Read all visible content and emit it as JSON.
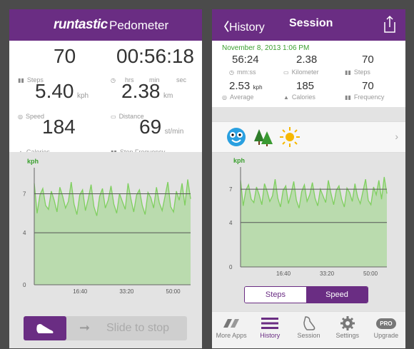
{
  "left": {
    "brand": "runtastic",
    "app_name": "Pedometer",
    "stats": {
      "steps": {
        "value": "70",
        "label": "Steps"
      },
      "duration": {
        "value": "00:56:18",
        "labels": [
          "hrs",
          "min",
          "sec"
        ]
      },
      "speed": {
        "value": "5.40",
        "unit": "kph",
        "label": "Speed"
      },
      "distance": {
        "value": "2.38",
        "unit": "km",
        "label": "Distance"
      },
      "calories": {
        "value": "184",
        "label": "Calories"
      },
      "frequency": {
        "value": "69",
        "unit": "st/min",
        "label": "Step Frequency"
      }
    },
    "chart": {
      "ylabel": "kph",
      "yticks": [
        "7",
        "4",
        "0"
      ],
      "xticks": [
        "16:40",
        "33:20",
        "50:00"
      ]
    },
    "slider_text": "Slide to stop"
  },
  "right": {
    "back_label": "History",
    "title": "Session",
    "date": "November 8, 2013  1:06 PM",
    "stats": {
      "duration": {
        "value": "56:24",
        "label": "mm:ss"
      },
      "distance": {
        "value": "2.38",
        "label": "Kilometer"
      },
      "steps": {
        "value": "70",
        "label": "Steps"
      },
      "speed": {
        "value": "2.53",
        "unit": "kph",
        "label": "Average"
      },
      "calories": {
        "value": "185",
        "label": "Calories"
      },
      "frequency": {
        "value": "70",
        "label": "Frequency"
      }
    },
    "chart": {
      "ylabel": "kph",
      "yticks": [
        "7",
        "4",
        "0"
      ],
      "xticks": [
        "16:40",
        "33:20",
        "50:00"
      ]
    },
    "toggle": {
      "steps": "Steps",
      "speed": "Speed"
    },
    "tabs": [
      "More Apps",
      "History",
      "Session",
      "Settings",
      "Upgrade"
    ],
    "pro_badge": "PRO"
  },
  "colors": {
    "purple": "#6a2d83",
    "green_fill": "#b3d9a5",
    "green_line": "#7fcf5f",
    "date_green": "#3a9f2e"
  },
  "chart_data": {
    "type": "area",
    "xlabel": "",
    "ylabel": "kph",
    "x_range": [
      0,
      56
    ],
    "ylim": [
      0,
      9
    ],
    "y_ref_lines": [
      7,
      4
    ],
    "values": [
      7.8,
      5.5,
      6.9,
      7.4,
      6.1,
      5.8,
      7.2,
      6.5,
      5.6,
      7.5,
      6.8,
      5.9,
      6.4,
      7.9,
      6.2,
      5.4,
      6.9,
      7.3,
      5.7,
      6.6,
      7.7,
      6.0,
      5.3,
      6.8,
      7.4,
      5.9,
      6.5,
      7.6,
      6.2,
      5.5,
      7.0,
      6.4,
      5.8,
      7.8,
      6.6,
      5.6,
      6.9,
      7.3,
      6.1,
      5.4,
      7.1,
      6.7,
      5.9,
      7.5,
      6.3,
      5.7,
      6.8,
      7.9,
      6.0,
      5.6,
      7.2,
      6.5,
      7.8,
      6.1,
      8.1,
      6.6
    ]
  }
}
